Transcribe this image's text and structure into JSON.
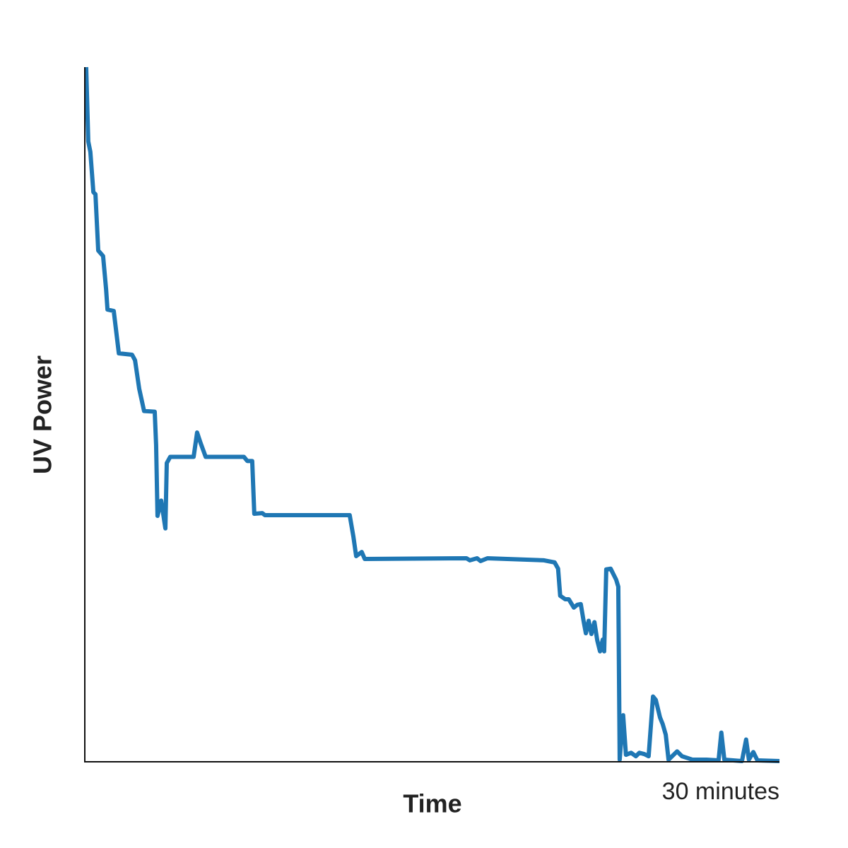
{
  "chart_data": {
    "type": "line",
    "x_label": "Time",
    "y_label": "UV Power",
    "xlim": [
      0,
      30
    ],
    "xticks": [
      {
        "value": 30,
        "label": "30 minutes"
      }
    ],
    "ylim": [
      0,
      100
    ],
    "series": [
      {
        "name": "UV Power",
        "color": "#1f77b4",
        "x": [
          0.06,
          0.15,
          0.24,
          0.37,
          0.46,
          0.58,
          0.79,
          0.92,
          0.98,
          1.25,
          1.47,
          2.04,
          2.17,
          2.35,
          2.56,
          3.02,
          3.08,
          3.14,
          3.3,
          3.48,
          3.54,
          3.69,
          4.7,
          4.85,
          5.0,
          5.22,
          6.87,
          7.02,
          7.23,
          7.32,
          7.66,
          7.78,
          11.44,
          11.6,
          11.72,
          11.96,
          12.09,
          16.48,
          16.63,
          16.94,
          17.09,
          17.39,
          19.83,
          20.29,
          20.44,
          20.53,
          20.75,
          20.9,
          21.12,
          21.27,
          21.42,
          21.55,
          21.64,
          21.76,
          21.88,
          22.01,
          22.13,
          22.25,
          22.37,
          22.43,
          22.52,
          22.71,
          22.95,
          23.04,
          23.1,
          23.25,
          23.37,
          23.59,
          23.8,
          23.95,
          24.17,
          24.35,
          24.54,
          24.66,
          24.84,
          24.96,
          25.09,
          25.21,
          25.58,
          25.79,
          26.25,
          26.85,
          27.37,
          27.49,
          27.62,
          28.38,
          28.56,
          28.68,
          28.87,
          29.05,
          30
        ],
        "values": [
          100,
          89.3,
          87.8,
          82,
          81.7,
          73.6,
          72.8,
          68,
          65.1,
          64.9,
          58.8,
          58.6,
          57.8,
          53.7,
          50.5,
          50.4,
          45.6,
          35.4,
          37.6,
          33.6,
          43,
          43.9,
          43.9,
          47.4,
          45.9,
          43.9,
          43.9,
          43.3,
          43.3,
          35.7,
          35.8,
          35.5,
          35.5,
          32.4,
          29.6,
          30.2,
          29.2,
          29.3,
          29.0,
          29.3,
          28.9,
          29.3,
          29.0,
          28.7,
          27.8,
          23.9,
          23.4,
          23.4,
          22.2,
          22.6,
          22.7,
          20.1,
          18.5,
          20.3,
          18.4,
          20.1,
          17.5,
          15.9,
          17.6,
          15.9,
          27.7,
          27.8,
          26.2,
          25.2,
          0.3,
          6.7,
          1.0,
          1.3,
          0.8,
          1.3,
          1.1,
          0.8,
          9.4,
          8.9,
          6.4,
          5.4,
          3.9,
          0.3,
          1.5,
          0.8,
          0.3,
          0.3,
          0.2,
          4.2,
          0.3,
          0.1,
          3.2,
          0.3,
          1.4,
          0.2,
          0.1
        ]
      }
    ]
  }
}
